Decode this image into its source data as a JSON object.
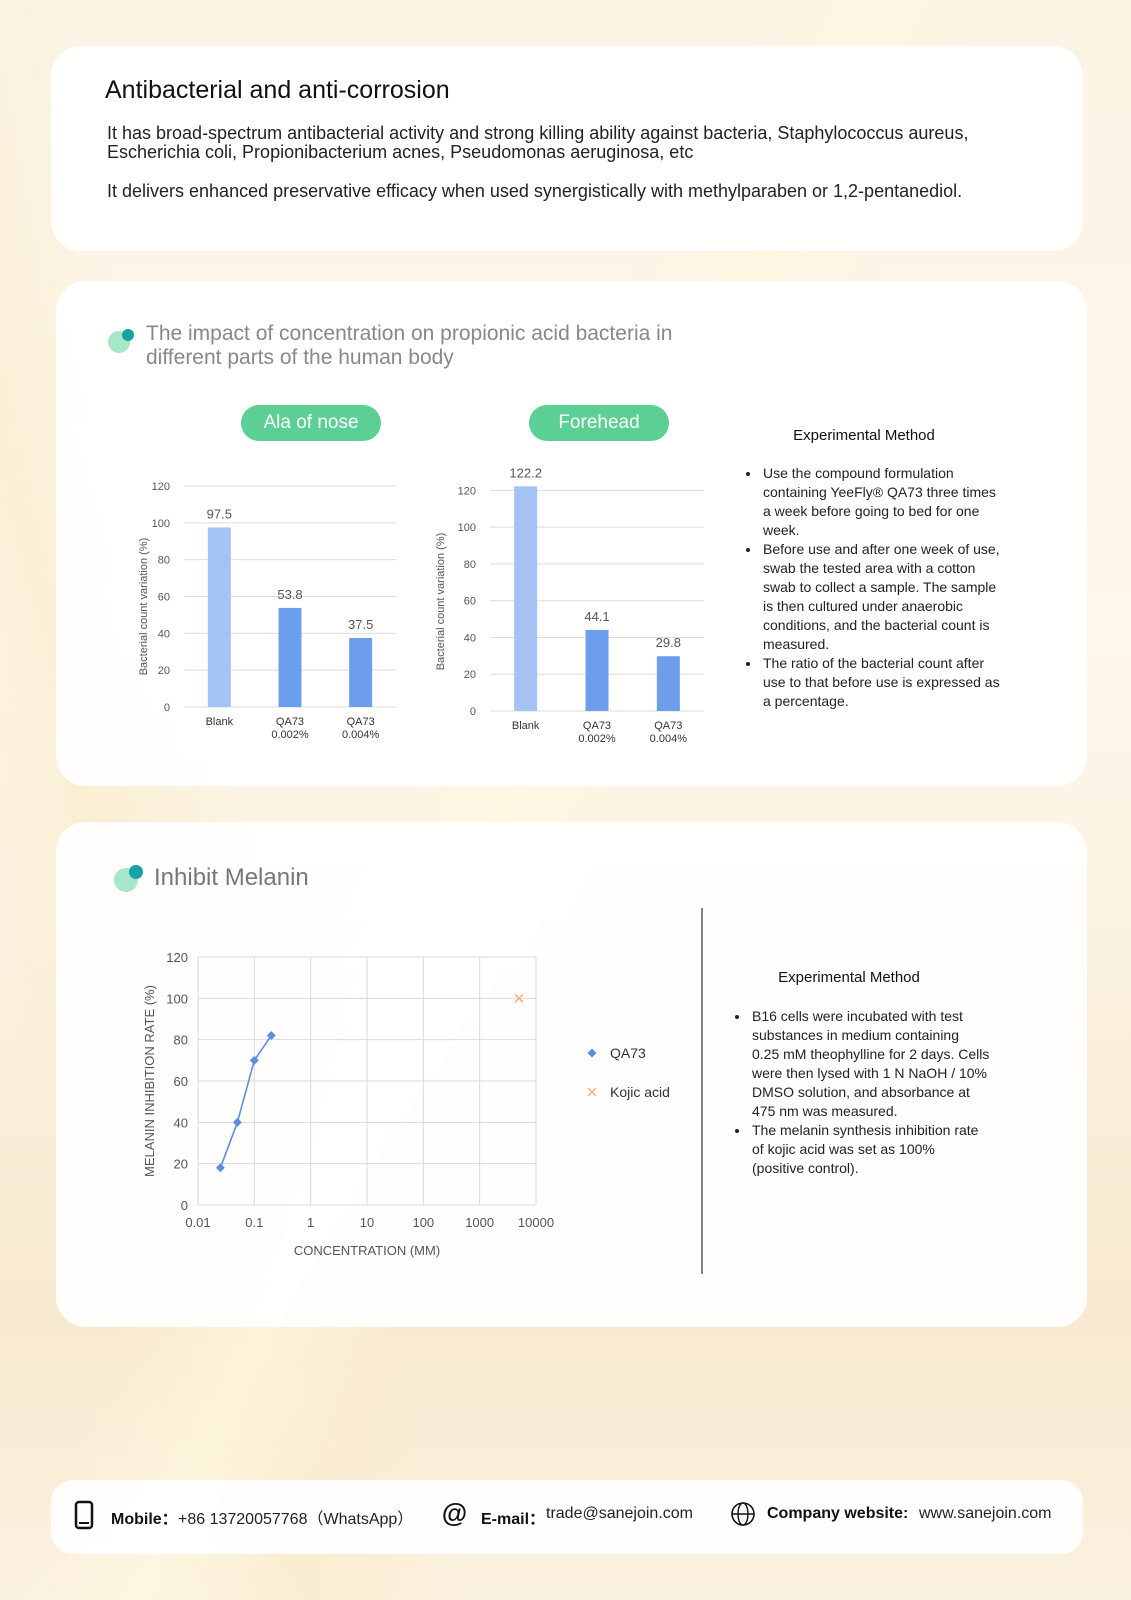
{
  "section1": {
    "title": "Antibacterial and anti-corrosion",
    "paragraphs": [
      "It has broad-spectrum antibacterial activity and strong killing ability against bacteria, Staphylococcus aureus, Escherichia coli, Propionibacterium acnes, Pseudomonas aeruginosa, etc",
      "It delivers enhanced preservative efficacy when used synergistically with methylparaben or 1,2-pentanediol."
    ]
  },
  "section2": {
    "title": "The impact of concentration on propionic acid bacteria in different parts of the human body"
  },
  "section3": {
    "title": "Inhibit Melanin"
  },
  "chart_data": [
    {
      "type": "bar",
      "title": "Ala of nose",
      "title_background": "#5ccf94",
      "y_label": "Bacterial count variation (%)",
      "categories": [
        "Blank",
        "QA73 0.002%",
        "QA73 0.004%"
      ],
      "values": [
        97.5,
        53.8,
        37.5
      ],
      "colors": [
        "#a4c2f4",
        "#6d9eeb",
        "#6d9eeb"
      ],
      "ylim": [
        0,
        120
      ],
      "yticks": [
        0,
        20,
        40,
        60,
        80,
        100,
        120
      ],
      "grid": true
    },
    {
      "type": "bar",
      "title": "Forehead",
      "title_background": "#5ccf94",
      "y_label": "Bacterial count variation (%)",
      "categories": [
        "Blank",
        "QA73 0.002%",
        "QA73 0.004%"
      ],
      "values": [
        122.2,
        44.1,
        29.8
      ],
      "colors": [
        "#a4c2f4",
        "#6d9eeb",
        "#6d9eeb"
      ],
      "ylim": [
        0,
        130
      ],
      "yticks": [
        0,
        20,
        40,
        60,
        80,
        100,
        120
      ],
      "grid": true
    },
    {
      "type": "line",
      "x_label": "CONCENTRATION (MM)",
      "y_label": "MELANIN INHIBITION RATE (%)",
      "xscale": "log",
      "xlim": [
        0.01,
        10000
      ],
      "xticks": [
        0.01,
        0.1,
        1,
        10,
        100,
        1000,
        10000
      ],
      "ylim": [
        0,
        120
      ],
      "yticks": [
        0,
        20,
        40,
        60,
        80,
        100,
        120
      ],
      "grid": true,
      "legend": "right",
      "series": [
        {
          "name": "QA73",
          "color": "#5b8ee0",
          "marker": "diamond",
          "line": true,
          "x": [
            0.025,
            0.05,
            0.1,
            0.2
          ],
          "values": [
            18,
            40,
            70,
            82
          ]
        },
        {
          "name": "Kojic acid",
          "color": "#f4b183",
          "marker": "x",
          "line": false,
          "x": [
            5000
          ],
          "values": [
            100
          ]
        }
      ]
    }
  ],
  "methods": [
    {
      "title": "Experimental Method",
      "items": [
        "Use the compound formulation containing YeeFly® QA73 three times a week before going to bed for one week.",
        "Before use and after one week of use, swab the tested area with a cotton swab to collect a sample. The sample is then cultured under anaerobic conditions, and the bacterial count is measured.",
        "The ratio of the bacterial count after use to that before use is expressed as a percentage."
      ]
    },
    {
      "title": "Experimental Method",
      "items": [
        "B16 cells were incubated with test substances in medium containing 0.25 mM theophylline for 2 days. Cells were then lysed with 1 N NaOH / 10% DMSO solution, and absorbance at 475 nm was measured.",
        "The melanin synthesis inhibition rate of kojic acid was set as 100% (positive control)."
      ]
    }
  ],
  "footer": {
    "mobile_label": "Mobile：",
    "mobile": "+86 13720057768（WhatsApp）",
    "email_label": "E-mail：",
    "email": "trade@sanejoin.com",
    "website_label": "Company website:",
    "website": "www.sanejoin.com"
  }
}
